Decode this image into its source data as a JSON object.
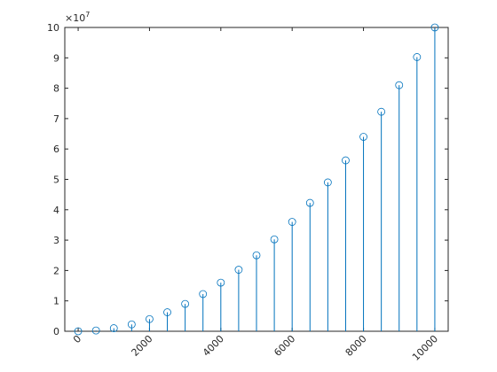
{
  "chart_data": {
    "type": "stem",
    "x": [
      0,
      500,
      1000,
      1500,
      2000,
      2500,
      3000,
      3500,
      4000,
      4500,
      5000,
      5500,
      6000,
      6500,
      7000,
      7500,
      8000,
      8500,
      9000,
      9500,
      10000
    ],
    "values": [
      0,
      250000,
      1000000,
      2250000,
      4000000,
      6250000,
      9000000,
      12250000,
      16000000,
      20250000,
      25000000,
      30250000,
      36000000,
      42250000,
      49000000,
      56250000,
      64000000,
      72250000,
      81000000,
      90250000,
      100000000
    ],
    "color": "#0072BD",
    "xlim": [
      -375,
      10375
    ],
    "xticks": [
      0,
      2000,
      4000,
      6000,
      8000,
      10000
    ],
    "ylim": [
      0,
      100000000
    ],
    "yticks": [
      0,
      {
        "value": 10000000,
        "label": "1"
      },
      {
        "value": 20000000,
        "label": "2"
      },
      {
        "value": 30000000,
        "label": "3"
      },
      {
        "value": 40000000,
        "label": "4"
      },
      {
        "value": 50000000,
        "label": "5"
      },
      {
        "value": 60000000,
        "label": "6"
      },
      {
        "value": 70000000,
        "label": "7"
      },
      {
        "value": 80000000,
        "label": "8"
      },
      {
        "value": 90000000,
        "label": "9"
      },
      {
        "value": 100000000,
        "label": "10"
      }
    ],
    "y_exponent": {
      "base": "×10",
      "power": "7"
    }
  }
}
